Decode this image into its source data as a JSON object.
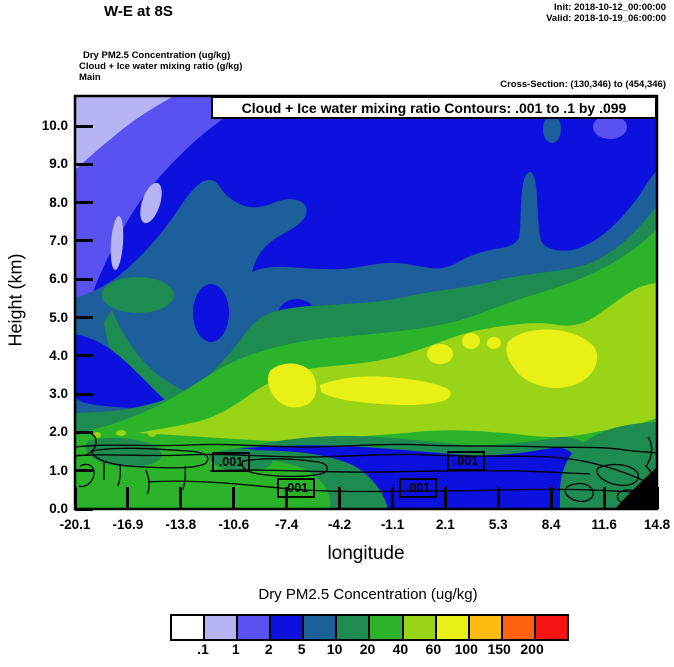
{
  "header": {
    "title": "W-E at 8S",
    "init": "Init: 2018-10-12_00:00:00",
    "valid": "Valid: 2018-10-19_06:00:00",
    "field_line_1": "Dry PM2.5 Concentration   (ug/kg)",
    "field_line_2": "Cloud + Ice water mixing ratio   (g/kg)",
    "field_line_3": "Main",
    "cross_section": "Cross-Section: (130,346) to (454,346)"
  },
  "plot": {
    "inset_title": "Cloud + Ice water mixing ratio Contours: .001 to .1 by .099",
    "xlabel": "longitude",
    "ylabel": "Height (km)",
    "x_tick_labels": [
      "-20.1",
      "-16.9",
      "-13.8",
      "-10.6",
      "-7.4",
      "-4.2",
      "-1.1",
      "2.1",
      "5.3",
      "8.4",
      "11.6",
      "14.8"
    ],
    "y_tick_labels": [
      "0.0",
      "1.0",
      "2.0",
      "3.0",
      "4.0",
      "5.0",
      "6.0",
      "7.0",
      "8.0",
      "9.0",
      "10.0"
    ],
    "contour_labels": [
      ".001",
      ".001",
      ".001",
      ".001"
    ]
  },
  "colorbar": {
    "title": "Dry PM2.5 Concentration  (ug/kg)",
    "tick_labels": [
      ".1",
      "1",
      "2",
      "5",
      "10",
      "20",
      "40",
      "60",
      "100",
      "150",
      "200"
    ],
    "colors": [
      "#ffffff",
      "#b7b4f4",
      "#5a52f0",
      "#0d11dd",
      "#1d5f9b",
      "#1e8b50",
      "#2bb42a",
      "#9ad416",
      "#e9f018",
      "#ffbb10",
      "#ff6310",
      "#f51414"
    ]
  },
  "chart_data": {
    "type": "heatmap",
    "title": "W-E at 8S",
    "subtitle": "Cloud + Ice water mixing ratio Contours: .001 to .1 by .099",
    "xlabel": "longitude",
    "ylabel": "Height (km)",
    "xlim": [
      -20.1,
      14.8
    ],
    "ylim": [
      0.0,
      10.8
    ],
    "x_ticks": [
      -20.1,
      -16.9,
      -13.8,
      -10.6,
      -7.4,
      -4.2,
      -1.1,
      2.1,
      5.3,
      8.4,
      11.6,
      14.8
    ],
    "y_ticks": [
      0,
      1,
      2,
      3,
      4,
      5,
      6,
      7,
      8,
      9,
      10
    ],
    "fill_field": "Dry PM2.5 Concentration (ug/kg)",
    "fill_levels": [
      0.1,
      1,
      2,
      5,
      10,
      20,
      40,
      60,
      100,
      150,
      200
    ],
    "fill_colors": [
      "#ffffff",
      "#b7b4f4",
      "#5a52f0",
      "#0d11dd",
      "#1d5f9b",
      "#1e8b50",
      "#2bb42a",
      "#9ad416",
      "#e9f018",
      "#ffbb10",
      "#ff6310",
      "#f51414"
    ],
    "line_field": "Cloud + Ice water mixing ratio (g/kg)",
    "line_levels": [
      0.001,
      0.1
    ],
    "grid_longitudes": [
      -20.1,
      -16.9,
      -13.8,
      -10.6,
      -7.4,
      -4.2,
      -1.1,
      2.1,
      5.3,
      8.4,
      11.6,
      14.8
    ],
    "grid_heights_km": [
      0,
      1,
      2,
      3,
      4,
      5,
      6,
      7,
      8,
      9,
      10
    ],
    "pm25_estimate_ug_kg_by_height": [
      [
        30,
        30,
        30,
        30,
        30,
        30,
        3,
        3,
        3,
        3,
        15,
        null
      ],
      [
        30,
        30,
        30,
        30,
        30,
        30,
        3,
        3,
        3,
        3,
        15,
        15
      ],
      [
        30,
        30,
        30,
        30,
        30,
        15,
        15,
        15,
        15,
        30,
        30,
        15
      ],
      [
        30,
        30,
        30,
        50,
        80,
        80,
        80,
        80,
        50,
        50,
        50,
        50
      ],
      [
        7,
        7,
        15,
        30,
        50,
        50,
        50,
        50,
        50,
        80,
        50,
        50
      ],
      [
        7,
        7,
        7,
        3,
        15,
        15,
        15,
        15,
        15,
        15,
        50,
        50
      ],
      [
        1.5,
        7,
        7,
        7,
        7,
        7,
        7,
        7,
        7,
        7,
        15,
        30
      ],
      [
        3,
        3,
        7,
        7,
        7,
        3,
        3,
        3,
        3,
        7,
        15,
        30
      ],
      [
        1.5,
        3,
        3,
        7,
        3,
        3,
        3,
        3,
        3,
        3,
        3,
        3
      ],
      [
        1.5,
        3,
        3,
        3,
        3,
        3,
        3,
        3,
        3,
        3,
        3,
        3
      ],
      [
        0.5,
        1.5,
        3,
        3,
        3,
        3,
        3,
        3,
        3,
        3,
        3,
        3
      ]
    ],
    "cloud_ice_contour_region": "0.001 g/kg closed contours between ~0.5 and ~1.8 km spanning full longitude range",
    "terrain_mask": "black terrain wedge at lower-right corner (lon > ~12.5, below ~1 km)",
    "legend_position": "bottom",
    "grid": false
  }
}
